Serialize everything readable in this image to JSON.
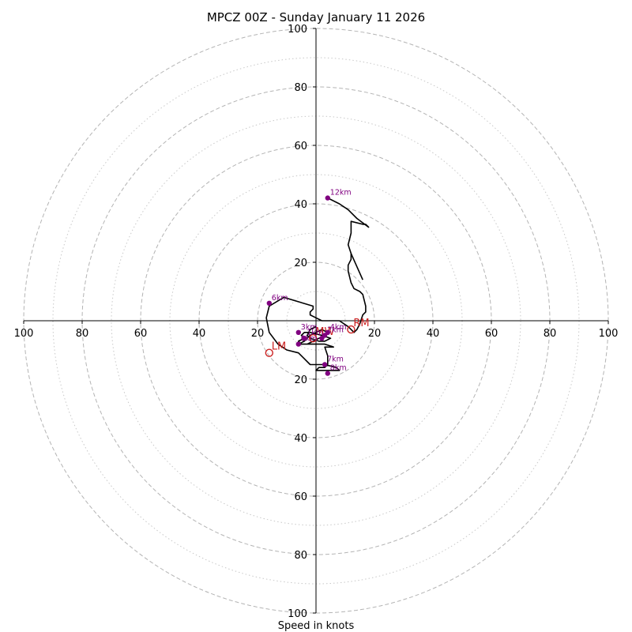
{
  "chart_data": {
    "type": "hodograph",
    "title": "MPCZ 00Z - Sunday January 11 2026",
    "xlabel": "Speed in knots",
    "range": [
      -100,
      100
    ],
    "rings_major": [
      20,
      40,
      60,
      80,
      100
    ],
    "rings_minor": [
      10,
      30,
      50,
      70,
      90
    ],
    "xtick_labels": [
      "100",
      "80",
      "60",
      "40",
      "20",
      "20",
      "40",
      "60",
      "80",
      "100"
    ],
    "xtick_values": [
      -100,
      -80,
      -60,
      -40,
      -20,
      20,
      40,
      60,
      80,
      100
    ],
    "ytick_labels": [
      "100",
      "80",
      "60",
      "40",
      "20",
      "20",
      "40",
      "60",
      "80",
      "100"
    ],
    "ytick_values": [
      100,
      80,
      60,
      40,
      20,
      -20,
      -40,
      -60,
      -80,
      -100
    ],
    "trace_color": "#000000",
    "height_marker_color": "#800080",
    "motion_marker_color": "#cc2222",
    "trace": [
      [
        0,
        -2
      ],
      [
        -2,
        -3
      ],
      [
        -3,
        -5
      ],
      [
        -2,
        -6
      ],
      [
        1,
        -7
      ],
      [
        3,
        -7
      ],
      [
        5,
        -6
      ],
      [
        2,
        -5
      ],
      [
        -2,
        -4
      ],
      [
        -4,
        -4
      ],
      [
        -5,
        -5
      ],
      [
        -4,
        -6
      ],
      [
        -6,
        -7
      ],
      [
        -5,
        -8
      ],
      [
        -3,
        -8
      ],
      [
        -1,
        -7
      ],
      [
        1,
        -6
      ],
      [
        3,
        -5
      ],
      [
        4,
        -4
      ],
      [
        2,
        -3
      ],
      [
        0,
        -4
      ],
      [
        -2,
        -5
      ],
      [
        -4,
        -7
      ],
      [
        -6,
        -8
      ],
      [
        -3,
        -8
      ],
      [
        0,
        -8
      ],
      [
        3,
        -8
      ],
      [
        6,
        -9
      ],
      [
        4,
        -9
      ],
      [
        3,
        -9
      ],
      [
        4,
        -12
      ],
      [
        4,
        -15
      ],
      [
        3,
        -16
      ],
      [
        1,
        -16
      ],
      [
        0,
        -17
      ],
      [
        4,
        -17
      ],
      [
        8,
        -17
      ],
      [
        7,
        -16
      ],
      [
        3,
        -15
      ],
      [
        -2,
        -15
      ],
      [
        -4,
        -13
      ],
      [
        -6,
        -11
      ],
      [
        -10,
        -10
      ],
      [
        -13,
        -8
      ],
      [
        -16,
        -4
      ],
      [
        -17,
        1
      ],
      [
        -16,
        5
      ],
      [
        -11,
        8
      ],
      [
        -1,
        5
      ],
      [
        -1,
        4
      ],
      [
        -2,
        3
      ],
      [
        -2,
        2
      ],
      [
        0,
        1
      ],
      [
        2,
        0
      ],
      [
        6,
        0
      ],
      [
        8,
        0
      ],
      [
        11,
        -2
      ],
      [
        12,
        -3
      ],
      [
        13,
        -4
      ],
      [
        14,
        -3
      ],
      [
        15,
        -1
      ],
      [
        16,
        2
      ],
      [
        17,
        3
      ],
      [
        17,
        4
      ],
      [
        17,
        5
      ],
      [
        16,
        9
      ],
      [
        15,
        10
      ],
      [
        13,
        11
      ],
      [
        12,
        13
      ],
      [
        11,
        17
      ],
      [
        11,
        19
      ],
      [
        12,
        21
      ],
      [
        12,
        23
      ],
      [
        11,
        26
      ],
      [
        12,
        30
      ],
      [
        12,
        34
      ],
      [
        16,
        33
      ],
      [
        17,
        33
      ],
      [
        18,
        32
      ],
      [
        14,
        35
      ],
      [
        11,
        38
      ],
      [
        8,
        40
      ],
      [
        4,
        42
      ]
    ],
    "trace_extra": [
      [
        12,
        23
      ],
      [
        16,
        14
      ]
    ],
    "height_points": [
      {
        "label": "0km",
        "x": -6,
        "y": -8
      },
      {
        "label": "1km",
        "x": -4,
        "y": -6
      },
      {
        "label": "2km",
        "x": 3,
        "y": -5
      },
      {
        "label": "3km",
        "x": -6,
        "y": -4
      },
      {
        "label": "4km",
        "x": 4,
        "y": -4
      },
      {
        "label": "5km",
        "x": 2,
        "y": -6
      },
      {
        "label": "6km",
        "x": -16,
        "y": 6
      },
      {
        "label": "7km",
        "x": 3,
        "y": -15
      },
      {
        "label": "8km",
        "x": 4,
        "y": -18
      },
      {
        "label": "12km",
        "x": 4,
        "y": 42
      }
    ],
    "height_labels_shown": [
      {
        "label": "12km",
        "x": 4,
        "y": 42
      },
      {
        "label": "6km",
        "x": -16,
        "y": 6
      },
      {
        "label": "7km",
        "x": 3,
        "y": -15
      },
      {
        "label": "8km",
        "x": 4,
        "y": -18
      },
      {
        "label": "3km",
        "x": -6,
        "y": -4
      },
      {
        "label": "2km",
        "x": 3,
        "y": -5
      },
      {
        "label": "4km",
        "x": 4,
        "y": -4
      },
      {
        "label": "1km",
        "x": -4,
        "y": -6
      },
      {
        "label": "0km",
        "x": -6,
        "y": -8
      }
    ],
    "storm_motion": [
      {
        "label": "RM",
        "x": 12,
        "y": -3
      },
      {
        "label": "LM",
        "x": -16,
        "y": -11
      },
      {
        "label": "MW",
        "x": -1,
        "y": -6
      }
    ]
  }
}
